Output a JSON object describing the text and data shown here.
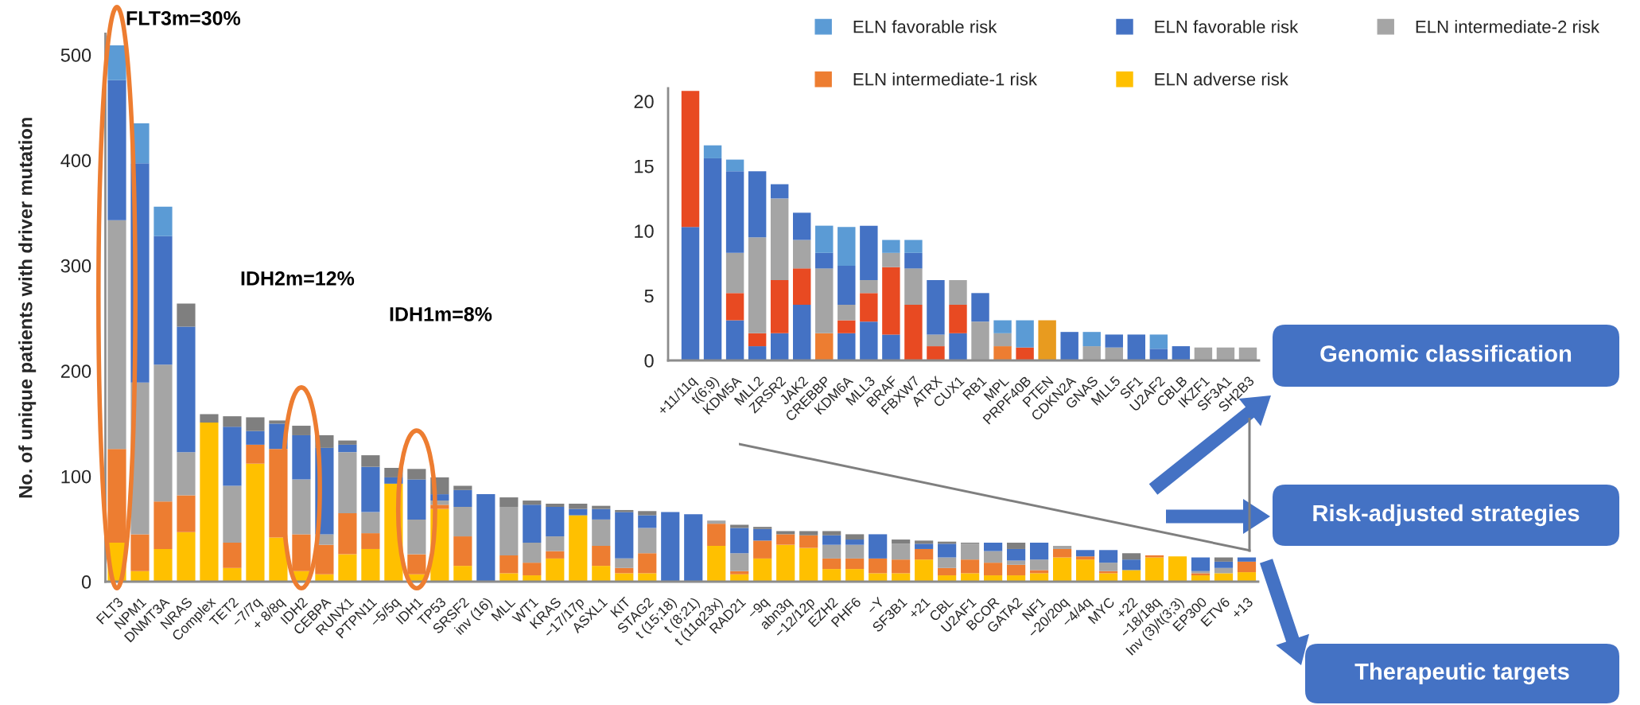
{
  "chart_data": [
    {
      "type": "bar",
      "stacked": true,
      "categories": [
        "FLT3",
        "NPM1",
        "DNMT3A",
        "NRAS",
        "Complex",
        "TET2",
        "−7/7q",
        "+ 8/8q",
        "IDH2",
        "CEBPA",
        "RUNX1",
        "PTPN11",
        "−5/5q",
        "IDH1",
        "TP53",
        "SRSF2",
        "inv (16)",
        "MLL",
        "WT1",
        "KRAS",
        "−17/17p",
        "ASXL1",
        "KIT",
        "STAG2",
        "t (15;18)",
        "t (8;21)",
        "t (11q23x)",
        "RAD21",
        "−9q",
        "abn3q",
        "−12/12p",
        "EZH2",
        "PHF6",
        "−Y",
        "SF3B1",
        "+21",
        "CBL",
        "U2AF1",
        "BCOR",
        "GATA2",
        "NF1",
        "−20/20q",
        "−4/4q",
        "MYC",
        "+22",
        "−18/18q",
        "Inv (3)/t(3;3)",
        "EP300",
        "ETV6",
        "+13"
      ],
      "series": [
        {
          "name": "ELN adverse risk",
          "color": "#ffc000",
          "values": [
            37,
            10,
            31,
            47,
            151,
            13,
            112,
            42,
            10,
            7,
            26,
            31,
            93,
            7,
            69,
            15,
            null,
            8,
            6,
            22,
            63,
            15,
            8,
            8,
            null,
            null,
            34,
            7,
            22,
            35,
            32,
            12,
            12,
            8,
            8,
            21,
            6,
            8,
            6,
            6,
            8,
            23,
            21,
            8,
            11,
            23,
            24,
            6,
            8,
            9
          ]
        },
        {
          "name": "ELN intermediate-1 risk",
          "color": "#ed7d31",
          "values": [
            89,
            35,
            45,
            35,
            null,
            24,
            18,
            84,
            35,
            28,
            39,
            15,
            null,
            19,
            4,
            28,
            null,
            17,
            12,
            7,
            null,
            19,
            5,
            19,
            null,
            null,
            21,
            3,
            17,
            10,
            12,
            10,
            10,
            14,
            13,
            10,
            7,
            13,
            12,
            10,
            3,
            8,
            3,
            2,
            null,
            2,
            null,
            2,
            null,
            10
          ]
        },
        {
          "name": "ELN intermediate-2 risk",
          "color": "#a5a5a5",
          "values": [
            217,
            144,
            130,
            41,
            null,
            54,
            null,
            null,
            52,
            10,
            58,
            20,
            null,
            33,
            4,
            28,
            null,
            46,
            19,
            14,
            null,
            25,
            9,
            24,
            null,
            null,
            3,
            17,
            null,
            null,
            null,
            13,
            13,
            null,
            15,
            null,
            10,
            15,
            11,
            4,
            10,
            3,
            null,
            8,
            null,
            null,
            null,
            2,
            5,
            null
          ]
        },
        {
          "name": "ELN favorable risk",
          "color": "#4472c4",
          "values": [
            133,
            208,
            122,
            119,
            null,
            56,
            13,
            24,
            42,
            82,
            7,
            43,
            6,
            38,
            6,
            16,
            83,
            null,
            36,
            28,
            6,
            10,
            44,
            12,
            66,
            64,
            null,
            24,
            11,
            null,
            null,
            9,
            5,
            23,
            null,
            5,
            13,
            null,
            8,
            11,
            16,
            null,
            6,
            12,
            10,
            null,
            null,
            13,
            6,
            4
          ]
        },
        {
          "name": "ELN favorable risk",
          "color": "#5b9bd5",
          "values": [
            33,
            38,
            28,
            null,
            null,
            null,
            null,
            null,
            null,
            null,
            null,
            null,
            null,
            null,
            null,
            null,
            null,
            null,
            null,
            null,
            null,
            null,
            null,
            null,
            null,
            null,
            null,
            null,
            null,
            null,
            null,
            null,
            null,
            null,
            null,
            null,
            null,
            null,
            null,
            null,
            null,
            null,
            null,
            null,
            null,
            null,
            null,
            null,
            null,
            null
          ]
        },
        {
          "color": "#7f7f7f",
          "values": [
            null,
            null,
            null,
            22,
            8,
            10,
            13,
            3,
            9,
            12,
            4,
            11,
            9,
            10,
            16,
            4,
            null,
            9,
            4,
            3,
            5,
            3,
            2,
            4,
            null,
            null,
            null,
            3,
            2,
            3,
            4,
            4,
            5,
            null,
            4,
            3,
            2,
            1,
            null,
            6,
            null,
            null,
            null,
            null,
            6,
            null,
            null,
            null,
            4,
            null
          ]
        }
      ],
      "ylabel": "No. of unique patients with driver mutation",
      "ylim": [
        0,
        520
      ],
      "yticks": [
        0,
        100,
        200,
        300,
        400,
        500
      ],
      "legend": "top right",
      "annotations": [
        "FLT3m=30%",
        "IDH2m=12%",
        "IDH1m=8%",
        "Genomic classification",
        "Risk-adjusted strategies",
        "Therapeutic targets"
      ]
    },
    {
      "type": "bar",
      "stacked": true,
      "categories": [
        "+11/11q",
        "t(6;9)",
        "KDM5A",
        "MLL2",
        "ZRSR2",
        "JAK2",
        "CREBBP",
        "KDM6A",
        "MLL3",
        "BRAF",
        "FBXW7",
        "ATRX",
        "CUX1",
        "RB1",
        "MPL",
        "PRPF40B",
        "PTEN",
        "CDKN2A",
        "GNAS",
        "MLL5",
        "SF1",
        "U2AF2",
        "CBLB",
        "IKZF1",
        "SF3A1",
        "SH2B3"
      ],
      "series": [
        {
          "color": "#ed7d31",
          "values": [
            null,
            null,
            null,
            null,
            null,
            null,
            2.1,
            null,
            null,
            null,
            null,
            null,
            null,
            null,
            1.1,
            null,
            null,
            null,
            null,
            null,
            null,
            null,
            null,
            null,
            null,
            null
          ]
        },
        {
          "color": "#4472c4",
          "values": [
            10.3,
            15.6,
            3.1,
            1.1,
            2.1,
            4.3,
            null,
            2.1,
            3.0,
            2.0,
            null,
            null,
            2.1,
            null,
            null,
            null,
            null,
            2.2,
            null,
            null,
            2.0,
            0.9,
            1.1,
            null,
            null,
            null
          ]
        },
        {
          "color": "#e84a22",
          "values": [
            10.5,
            null,
            2.1,
            1.0,
            4.1,
            2.8,
            null,
            1.0,
            2.2,
            5.2,
            4.3,
            1.1,
            2.2,
            null,
            null,
            1.0,
            null,
            null,
            null,
            null,
            null,
            null,
            null,
            null,
            null,
            null
          ]
        },
        {
          "color": "#e89b1f",
          "values": [
            null,
            null,
            null,
            null,
            null,
            null,
            null,
            null,
            null,
            null,
            null,
            null,
            null,
            null,
            null,
            null,
            3.1,
            null,
            null,
            null,
            null,
            null,
            null,
            null,
            null,
            null
          ]
        },
        {
          "color": "#a5a5a5",
          "values": [
            null,
            null,
            3.1,
            7.4,
            6.3,
            2.2,
            5.0,
            1.2,
            1.0,
            1.1,
            2.8,
            0.9,
            1.9,
            3.0,
            1.0,
            null,
            null,
            null,
            1.1,
            1.0,
            null,
            null,
            null,
            1.0,
            1.0,
            1.0
          ]
        },
        {
          "color": "#4472c4",
          "values": [
            null,
            null,
            6.3,
            5.1,
            1.1,
            2.1,
            1.2,
            3.0,
            4.2,
            null,
            1.2,
            4.2,
            null,
            2.2,
            null,
            null,
            null,
            null,
            null,
            1.0,
            null,
            null,
            null,
            null,
            null,
            null
          ]
        },
        {
          "color": "#5b9bd5",
          "values": [
            null,
            1.0,
            0.9,
            null,
            null,
            null,
            2.1,
            3.0,
            null,
            1.0,
            1.0,
            null,
            null,
            null,
            1.0,
            2.1,
            null,
            null,
            1.1,
            null,
            null,
            1.1,
            null,
            null,
            null,
            null
          ]
        }
      ],
      "ylim": [
        0,
        21
      ],
      "yticks": [
        0,
        5,
        10,
        15,
        20
      ]
    }
  ]
}
